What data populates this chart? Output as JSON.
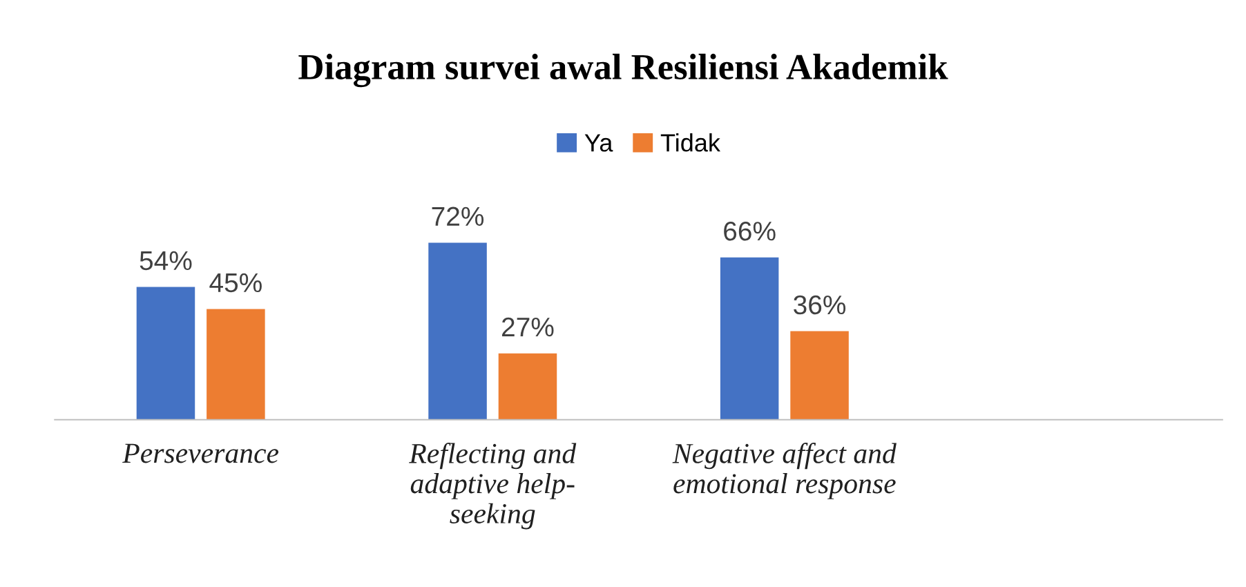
{
  "chart_data": {
    "type": "bar",
    "title": "Diagram survei awal Resiliensi Akademik",
    "categories": [
      "Perseverance",
      "Reflecting and adaptive help-seeking",
      "Negative affect and emotional response",
      null
    ],
    "series": [
      {
        "name": "Ya",
        "color": "#4472c4",
        "values": [
          54,
          72,
          66,
          null
        ],
        "value_labels": [
          "54%",
          "72%",
          "66%",
          null
        ]
      },
      {
        "name": "Tidak",
        "color": "#ed7d31",
        "values": [
          45,
          27,
          36,
          null
        ],
        "value_labels": [
          "45%",
          "27%",
          "36%",
          null
        ]
      }
    ],
    "legend": "top"
  }
}
